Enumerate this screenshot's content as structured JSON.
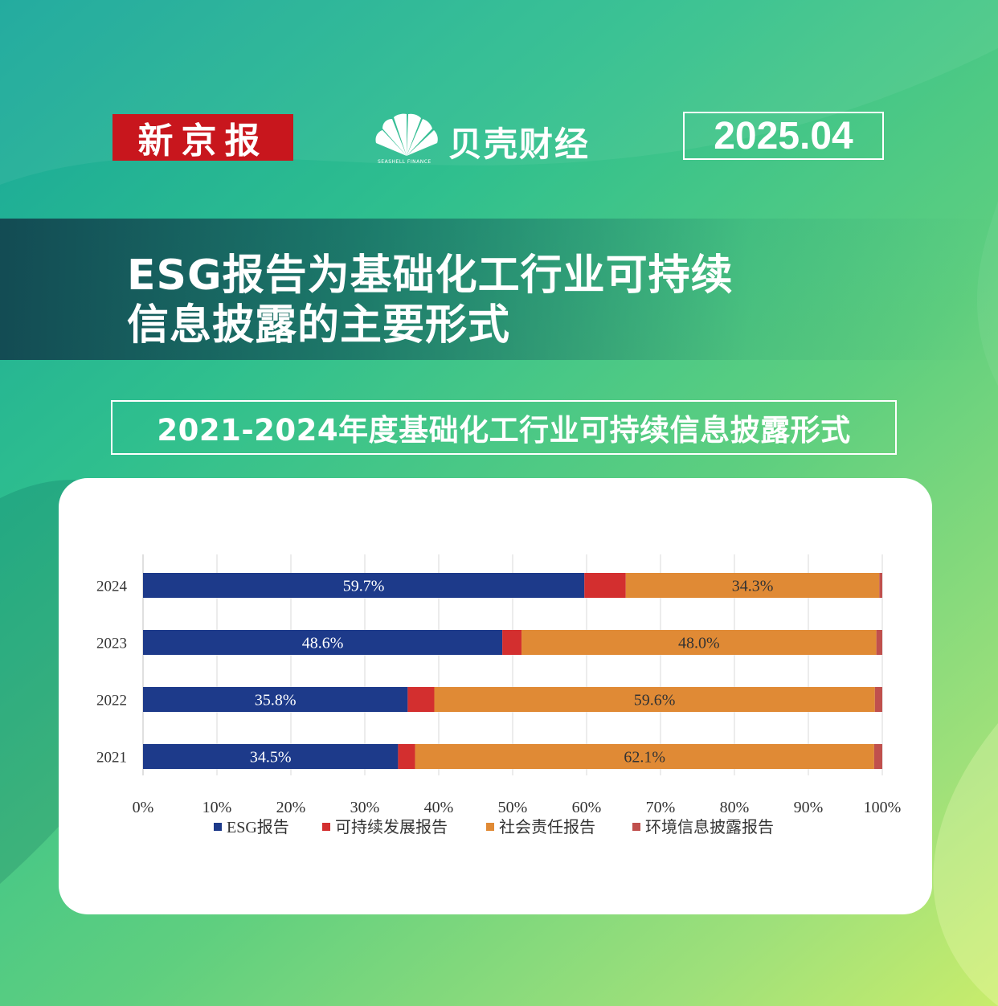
{
  "header": {
    "brand_xjb": "新京报",
    "brand_bk": "贝壳财经",
    "brand_bk_sub": "SEASHELL FINANCE",
    "date": "2025.04"
  },
  "title_lines": [
    "ESG报告为基础化工行业可持续",
    "信息披露的主要形式"
  ],
  "colors": {
    "esg": "#1d3a8a",
    "sustain": "#d32f2f",
    "social": "#e08a35",
    "env": "#c0504d"
  },
  "chart_data": {
    "type": "bar",
    "orientation": "horizontal",
    "stacked": true,
    "title": "2021-2024年度基础化工行业可持续信息披露形式",
    "categories": [
      "2024",
      "2023",
      "2022",
      "2021"
    ],
    "series": [
      {
        "name": "ESG报告",
        "values": [
          59.7,
          48.6,
          35.8,
          34.5
        ],
        "color": "#1d3a8a"
      },
      {
        "name": "可持续发展报告",
        "values": [
          5.6,
          2.6,
          3.6,
          2.3
        ],
        "color": "#d32f2f"
      },
      {
        "name": "社会责任报告",
        "values": [
          34.3,
          48.0,
          59.6,
          62.1
        ],
        "color": "#e08a35"
      },
      {
        "name": "环境信息披露报告",
        "values": [
          0.5,
          0.8,
          1.0,
          1.1
        ],
        "color": "#c0504d"
      }
    ],
    "data_labels": {
      "ESG报告": [
        "59.7%",
        "48.6%",
        "35.8%",
        "34.5%"
      ],
      "社会责任报告": [
        "34.3%",
        "48.0%",
        "59.6%",
        "62.1%"
      ]
    },
    "xlim": [
      0,
      100
    ],
    "xticks": [
      "0%",
      "10%",
      "20%",
      "30%",
      "40%",
      "50%",
      "60%",
      "70%",
      "80%",
      "90%",
      "100%"
    ],
    "grid": true,
    "legend": "bottom"
  }
}
